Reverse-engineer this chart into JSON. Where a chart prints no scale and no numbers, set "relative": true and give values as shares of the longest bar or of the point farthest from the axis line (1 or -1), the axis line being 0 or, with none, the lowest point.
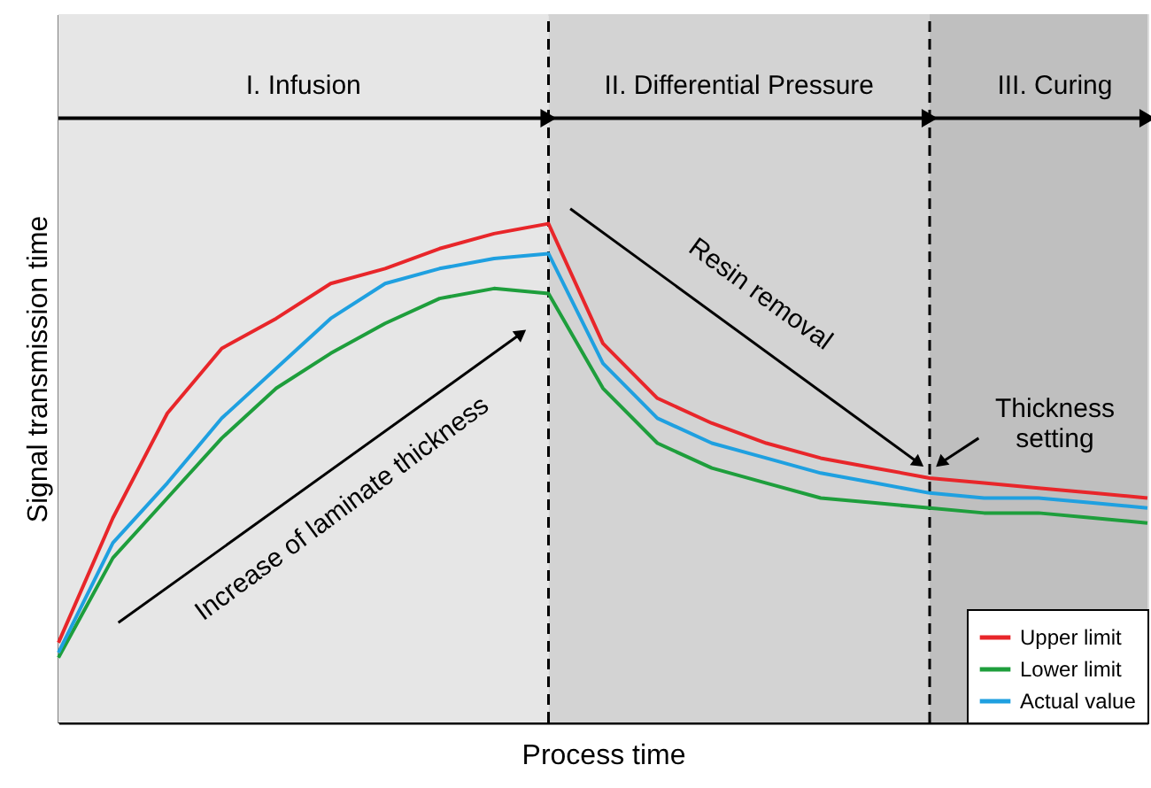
{
  "chart_data": {
    "type": "line",
    "relative": true,
    "xlabel": "Process time",
    "ylabel": "Signal transmission time",
    "categories": [
      null,
      null,
      null,
      null,
      null,
      null,
      null,
      null,
      null,
      null,
      null,
      null,
      null,
      null,
      null,
      null,
      null,
      null,
      null,
      null,
      null
    ],
    "grid": false,
    "legend": "bottom right",
    "line_style": "solid",
    "series": [
      {
        "name": "Upper limit",
        "color": "#e8262a",
        "values": [
          0.16,
          0.41,
          0.62,
          0.75,
          0.81,
          0.88,
          0.91,
          0.95,
          0.98,
          1.0,
          0.76,
          0.65,
          0.6,
          0.56,
          0.53,
          0.51,
          0.49,
          0.48,
          0.47,
          0.46,
          0.45
        ]
      },
      {
        "name": "Lower limit",
        "color": "#1e9e3c",
        "values": [
          0.13,
          0.33,
          0.45,
          0.57,
          0.67,
          0.74,
          0.8,
          0.85,
          0.87,
          0.86,
          0.67,
          0.56,
          0.51,
          0.48,
          0.45,
          0.44,
          0.43,
          0.42,
          0.42,
          0.41,
          0.4
        ]
      },
      {
        "name": "Actual value",
        "color": "#1fa0e0",
        "values": [
          0.14,
          0.36,
          0.48,
          0.61,
          0.71,
          0.81,
          0.88,
          0.91,
          0.93,
          0.94,
          0.72,
          0.61,
          0.56,
          0.53,
          0.5,
          0.48,
          0.46,
          0.45,
          0.45,
          0.44,
          0.43
        ]
      }
    ],
    "annotations": [
      "I. Infusion",
      "II. Differential Pressure",
      "III. Curing",
      "Increase of laminate thickness",
      "Resin removal",
      "Thickness setting"
    ]
  }
}
